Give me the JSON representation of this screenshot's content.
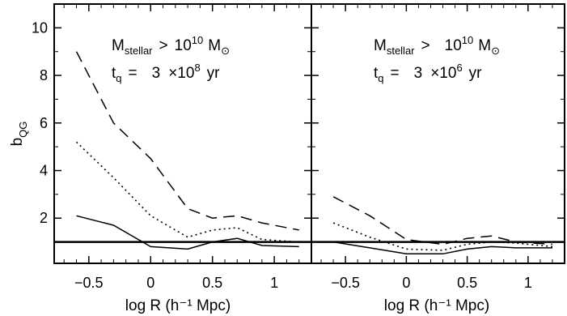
{
  "chart_data": [
    {
      "type": "line",
      "xlabel": "log R (h⁻¹ Mpc)",
      "ylabel": "b",
      "ylabel_sub": "QG",
      "xlim": [
        -0.78,
        1.3
      ],
      "ylim": [
        0.1,
        11
      ],
      "x_ticks": [
        -0.5,
        0,
        0.5,
        1
      ],
      "x_tick_labels": [
        "−0.5",
        "0",
        "0.5",
        "1"
      ],
      "y_ticks": [
        2,
        4,
        6,
        8,
        10
      ],
      "y_tick_labels": [
        "2",
        "4",
        "6",
        "8",
        "10"
      ],
      "annotation": {
        "m_symbol": "M",
        "m_sub": "stellar",
        "gt": ">",
        "ten": "10",
        "exp": "10",
        "unit_m": "M",
        "sun": "⊙",
        "t_symbol": "t",
        "t_sub": "q",
        "eq": "=",
        "coef": "3",
        "times": "×10",
        "t_exp": "8",
        "unit_t": "yr"
      },
      "reference_line": 1,
      "series": [
        {
          "style": "dashed",
          "x": [
            -0.6,
            -0.3,
            0,
            0.3,
            0.5,
            0.7,
            0.9,
            1.2
          ],
          "y": [
            9.0,
            6.0,
            4.5,
            2.4,
            2.0,
            2.1,
            1.8,
            1.5
          ]
        },
        {
          "style": "dotted",
          "x": [
            -0.6,
            -0.3,
            0,
            0.3,
            0.5,
            0.7,
            0.9,
            1.2
          ],
          "y": [
            5.2,
            3.7,
            2.1,
            1.2,
            1.5,
            1.6,
            1.1,
            1.0
          ]
        },
        {
          "style": "solid",
          "x": [
            -0.6,
            -0.3,
            0,
            0.3,
            0.5,
            0.7,
            0.9,
            1.2
          ],
          "y": [
            2.1,
            1.7,
            0.8,
            0.7,
            1.0,
            1.15,
            0.85,
            0.8
          ]
        }
      ]
    },
    {
      "type": "line",
      "xlabel": "log R (h⁻¹ Mpc)",
      "xlim": [
        -0.78,
        1.3
      ],
      "ylim": [
        0.1,
        11
      ],
      "x_ticks": [
        -0.5,
        0,
        0.5,
        1
      ],
      "x_tick_labels": [
        "−0.5",
        "0",
        "0.5",
        "1"
      ],
      "annotation": {
        "m_symbol": "M",
        "m_sub": "stellar",
        "gt": ">",
        "ten": "10",
        "exp": "10",
        "unit_m": "M",
        "sun": "⊙",
        "t_symbol": "t",
        "t_sub": "q",
        "eq": "=",
        "coef": "3",
        "times": "×10",
        "t_exp": "6",
        "unit_t": "yr"
      },
      "reference_line": 1,
      "series": [
        {
          "style": "dashed",
          "x": [
            -0.6,
            -0.3,
            0,
            0.3,
            0.5,
            0.7,
            0.9,
            1.2
          ],
          "y": [
            2.9,
            2.1,
            1.1,
            0.9,
            1.15,
            1.25,
            1.0,
            0.9
          ]
        },
        {
          "style": "dotted",
          "x": [
            -0.6,
            -0.3,
            0,
            0.3,
            0.5,
            0.7,
            0.9,
            1.2
          ],
          "y": [
            1.8,
            1.2,
            0.7,
            0.65,
            0.9,
            1.0,
            0.95,
            0.8
          ]
        },
        {
          "style": "solid",
          "x": [
            -0.6,
            -0.3,
            0,
            0.3,
            0.5,
            0.7,
            0.9,
            1.2
          ],
          "y": [
            1.0,
            0.75,
            0.5,
            0.5,
            0.7,
            0.8,
            0.75,
            0.75
          ]
        }
      ]
    }
  ]
}
